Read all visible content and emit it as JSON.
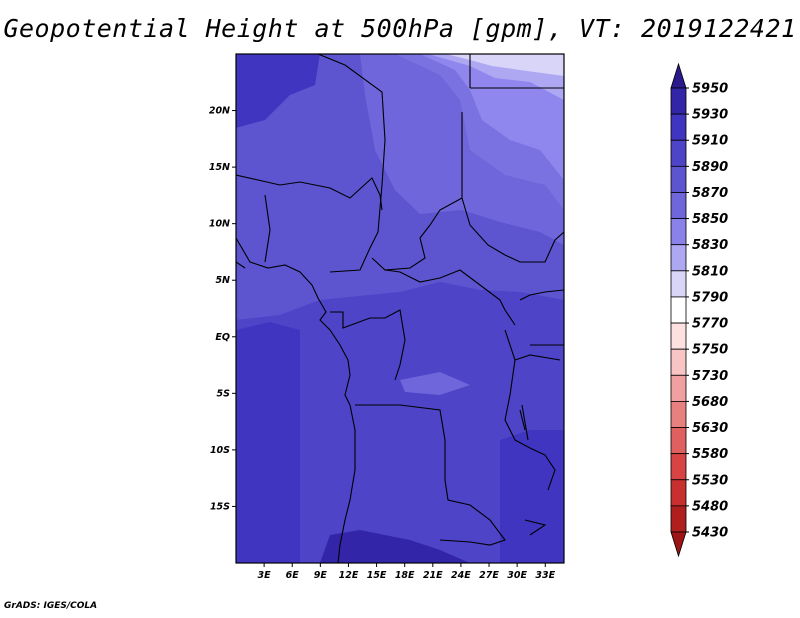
{
  "title": "Geopotential Height at 500hPa [gpm], VT: 2019122421",
  "credit": "GrADS: IGES/COLA",
  "map": {
    "lat_labels": [
      {
        "text": "20N",
        "lat": 20
      },
      {
        "text": "15N",
        "lat": 15
      },
      {
        "text": "10N",
        "lat": 10
      },
      {
        "text": "5N",
        "lat": 5
      },
      {
        "text": "EQ",
        "lat": 0
      },
      {
        "text": "5S",
        "lat": -5
      },
      {
        "text": "10S",
        "lat": -10
      },
      {
        "text": "15S",
        "lat": -15
      }
    ],
    "lon_labels": [
      {
        "text": "3E",
        "lon": 3
      },
      {
        "text": "6E",
        "lon": 6
      },
      {
        "text": "9E",
        "lon": 9
      },
      {
        "text": "12E",
        "lon": 12
      },
      {
        "text": "15E",
        "lon": 15
      },
      {
        "text": "18E",
        "lon": 18
      },
      {
        "text": "21E",
        "lon": 21
      },
      {
        "text": "24E",
        "lon": 24
      },
      {
        "text": "27E",
        "lon": 27
      },
      {
        "text": "30E",
        "lon": 30
      },
      {
        "text": "33E",
        "lon": 33
      }
    ],
    "lon_range": [
      0,
      35
    ],
    "lat_range": [
      -20,
      25
    ]
  },
  "colorbar": {
    "levels": [
      "5950",
      "5930",
      "5910",
      "5890",
      "5870",
      "5850",
      "5830",
      "5810",
      "5790",
      "5770",
      "5750",
      "5730",
      "5680",
      "5630",
      "5580",
      "5530",
      "5480",
      "5430"
    ],
    "colors": [
      "#2a1a8c",
      "#3325a8",
      "#4035c0",
      "#4e44c8",
      "#5d55d0",
      "#6e66da",
      "#8a82e8",
      "#aea8f2",
      "#d8d5f8",
      "#ffffff",
      "#fde0e0",
      "#f8c4c4",
      "#f0a0a0",
      "#e88080",
      "#e06060",
      "#d84444",
      "#c83030",
      "#b01e1e",
      "#9c1414"
    ]
  }
}
